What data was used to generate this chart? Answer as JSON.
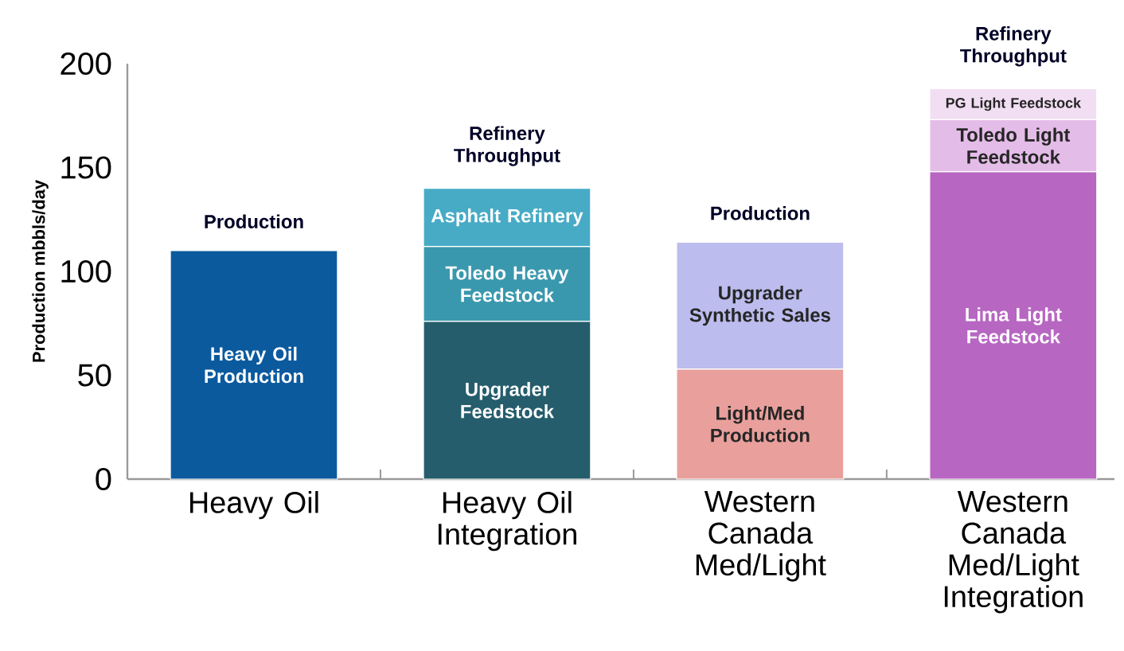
{
  "chart_data": {
    "type": "bar",
    "stacked": true,
    "ylabel": "Production mbbls/day",
    "categories": [
      "Heavy Oil",
      "Heavy Oil Integration",
      "Western Canada Med/Light",
      "Western Canada Med/Light Integration"
    ],
    "ylim": [
      0,
      200
    ],
    "yticks": [
      0,
      50,
      100,
      150,
      200
    ],
    "grid": false,
    "series": [
      {
        "name": "Heavy Oil Production",
        "color": "#0b5a9e",
        "values": [
          110,
          null,
          null,
          null
        ]
      },
      {
        "name": "Upgrader Feedstock",
        "color": "#255d6c",
        "values": [
          null,
          76,
          null,
          null
        ]
      },
      {
        "name": "Toledo Heavy Feedstock",
        "color": "#3a98ae",
        "values": [
          null,
          36,
          null,
          null
        ]
      },
      {
        "name": "Asphalt Refinery",
        "color": "#47abc6",
        "values": [
          null,
          28,
          null,
          null
        ]
      },
      {
        "name": "Light/Med Production",
        "color": "#e9a09c",
        "values": [
          null,
          null,
          53,
          null
        ]
      },
      {
        "name": "Upgrader Synthetic Sales",
        "color": "#bcbcee",
        "values": [
          null,
          null,
          61,
          null
        ]
      },
      {
        "name": "Lima Light Feedstock",
        "color": "#b766c2",
        "values": [
          null,
          null,
          null,
          148
        ]
      },
      {
        "name": "Toledo Light Feedstock",
        "color": "#e4bce8",
        "values": [
          null,
          null,
          null,
          25
        ]
      },
      {
        "name": "PG Light Feedstock",
        "color": "#f2def2",
        "values": [
          null,
          null,
          null,
          15
        ]
      }
    ],
    "annotations": [
      "Production",
      "Refinery Throughput",
      "Production",
      "Refinery Throughput"
    ]
  }
}
